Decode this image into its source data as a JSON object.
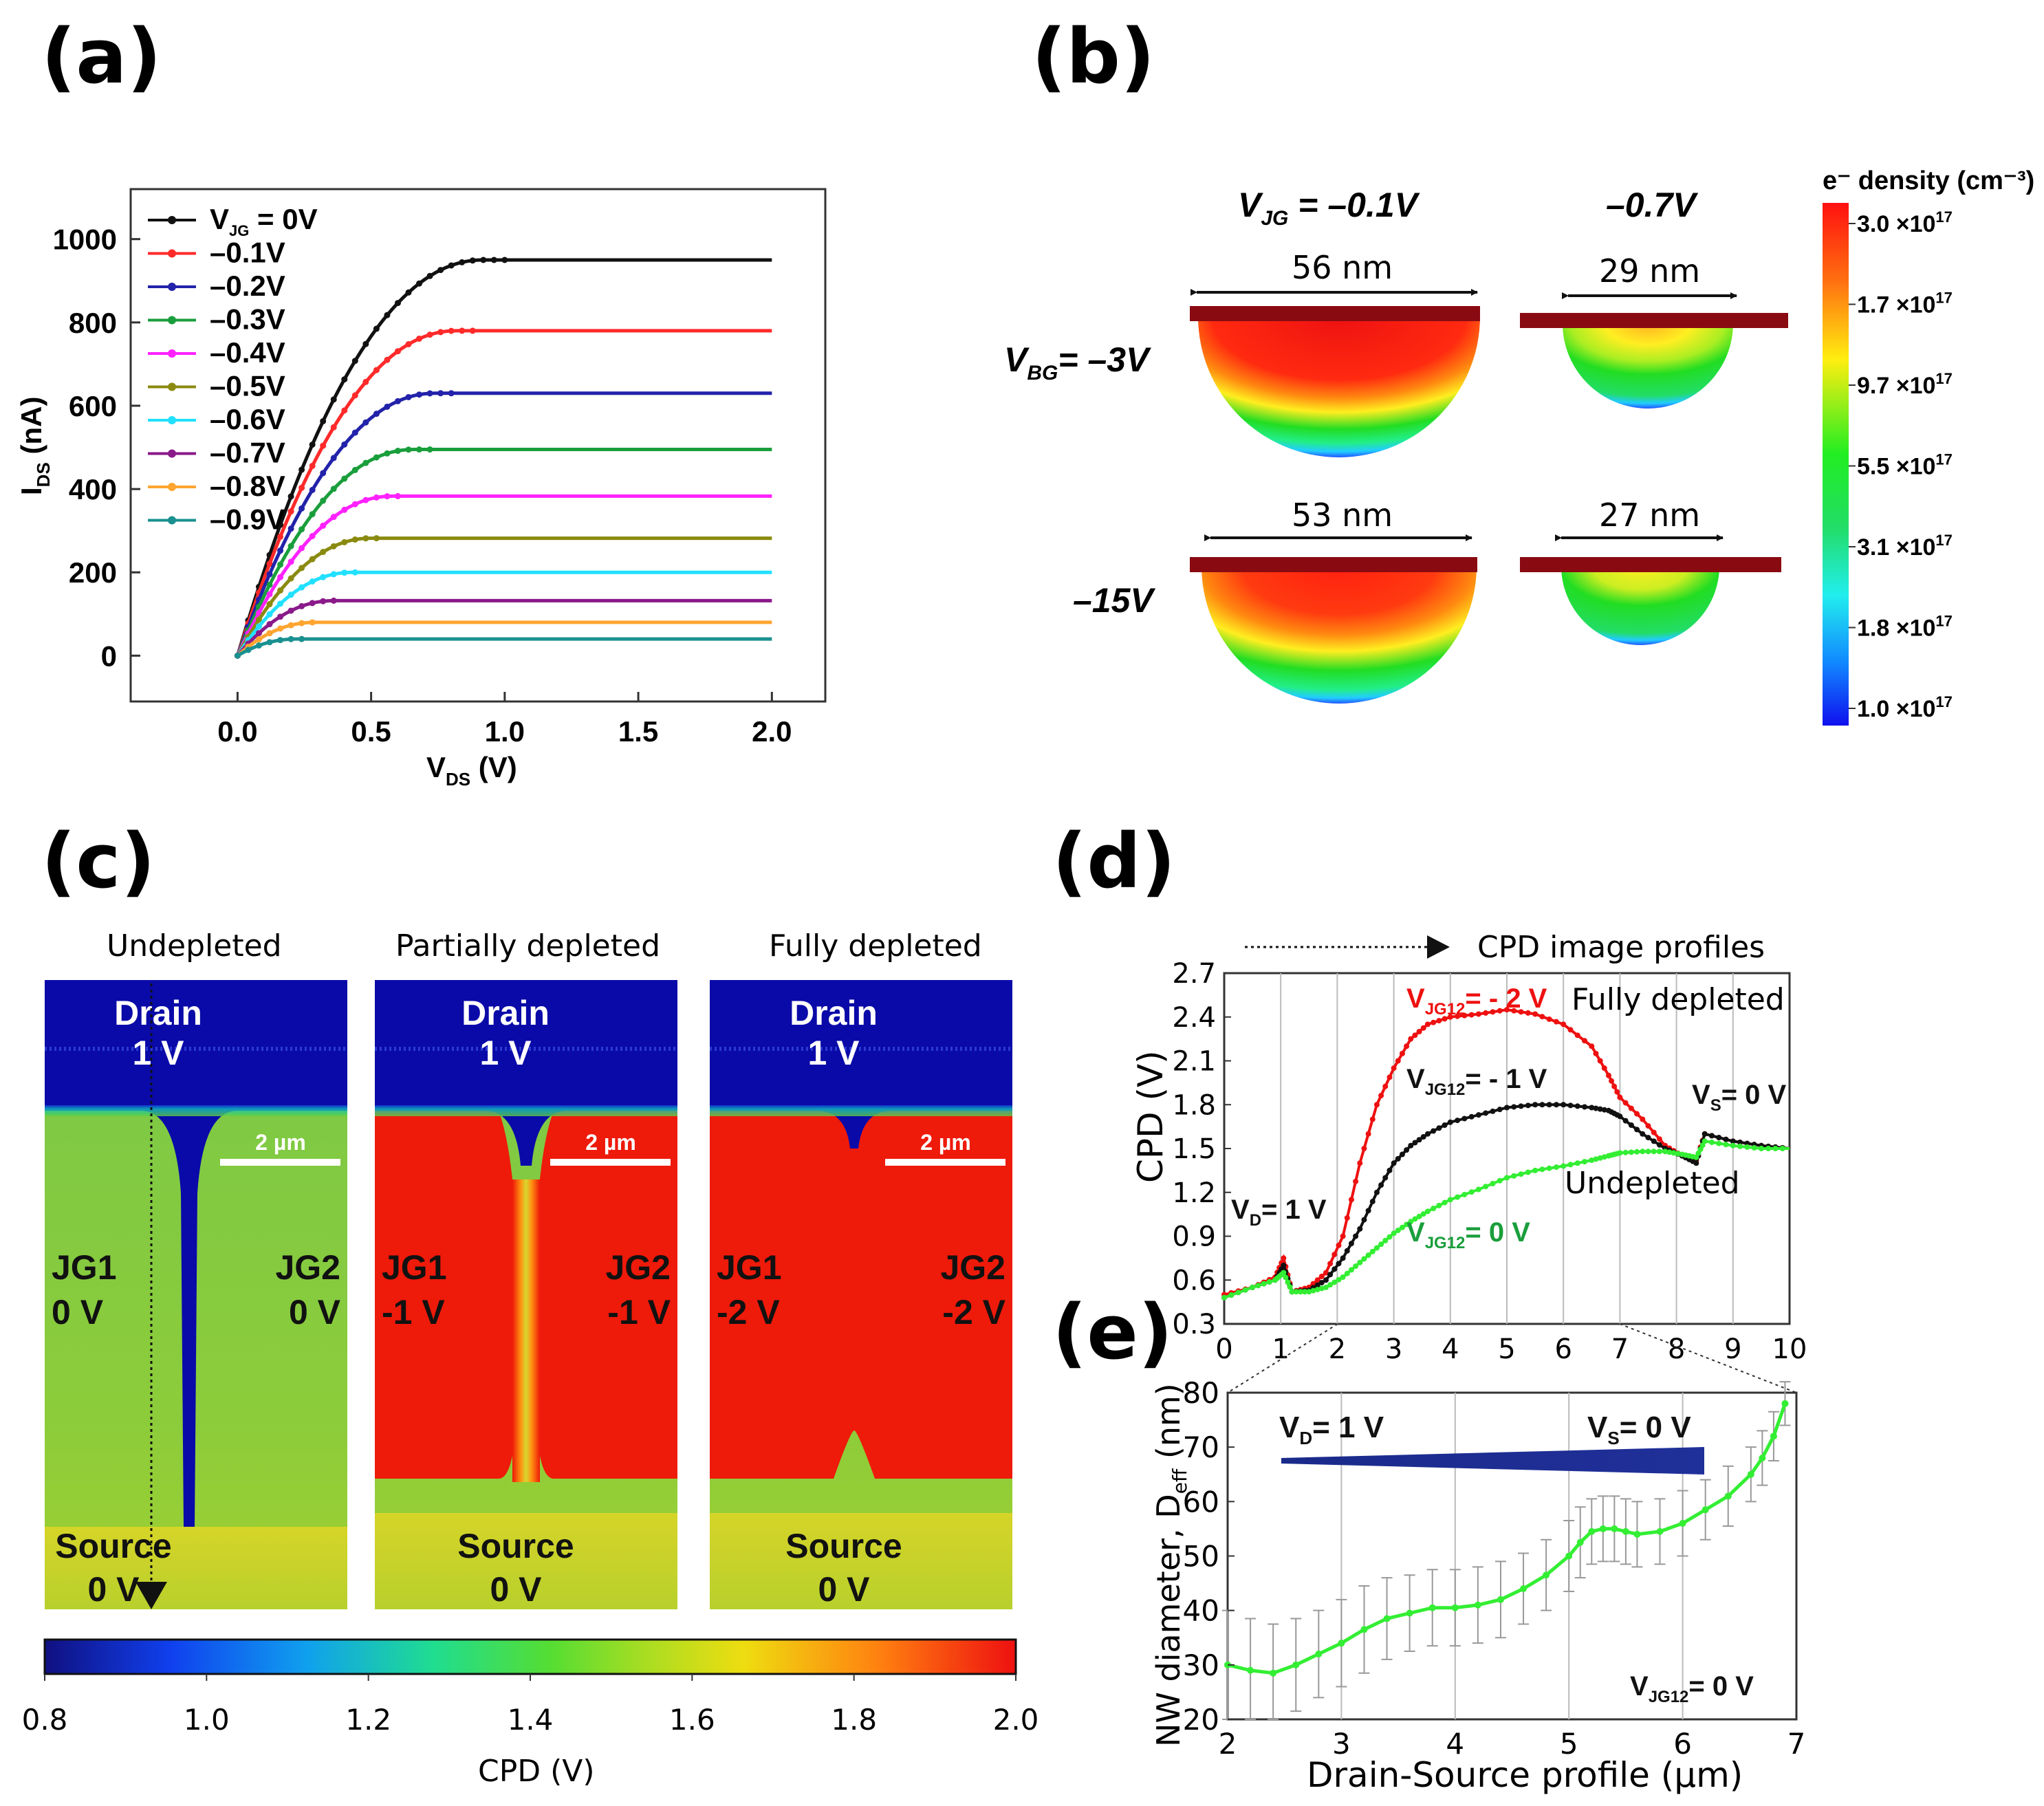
{
  "panels": {
    "a": "(a)",
    "b": "(b)",
    "c": "(c)",
    "d": "(d)",
    "e": "(e)"
  },
  "colors": {
    "black": "#111111",
    "red": "#ff2a2a",
    "blue": "#2222aa",
    "green": "#1a9e3c",
    "magenta": "#ff22ff",
    "olive": "#8a8a10",
    "cyan": "#22e0ff",
    "purple": "#8a1a8a",
    "orange": "#ffa530",
    "teal": "#1a9090",
    "navy": "#000a9a",
    "cpdred": "#ee1010",
    "cpdgreen": "#33ee33"
  },
  "chart_data": [
    {
      "id": "a",
      "type": "line",
      "xlabel": "V",
      "xlabel_sub": "DS",
      "xlabel_unit": " (V)",
      "ylabel": "I",
      "ylabel_sub": "DS",
      "ylabel_unit": " (nA)",
      "xlim": [
        -0.4,
        2.2
      ],
      "ylim": [
        -110,
        1120
      ],
      "xticks": [
        "0.0",
        "0.5",
        "1.0",
        "1.5",
        "2.0"
      ],
      "yticks": [
        "0",
        "200",
        "400",
        "600",
        "800",
        "1000"
      ],
      "legend_first": {
        "prefix": "V",
        "sub": "JG",
        "suffix": " = 0V"
      },
      "series": [
        {
          "name": "V_JG = 0V",
          "label": "",
          "color": "black",
          "plateau": 950,
          "vsat": 0.92
        },
        {
          "name": "-0.1V",
          "label": "–0.1V",
          "color": "red",
          "plateau": 780,
          "vsat": 0.82
        },
        {
          "name": "-0.2V",
          "label": "–0.2V",
          "color": "blue",
          "plateau": 630,
          "vsat": 0.74
        },
        {
          "name": "-0.3V",
          "label": "–0.3V",
          "color": "green",
          "plateau": 495,
          "vsat": 0.66
        },
        {
          "name": "-0.4V",
          "label": "–0.4V",
          "color": "magenta",
          "plateau": 383,
          "vsat": 0.58
        },
        {
          "name": "-0.5V",
          "label": "–0.5V",
          "color": "olive",
          "plateau": 282,
          "vsat": 0.5
        },
        {
          "name": "-0.6V",
          "label": "–0.6V",
          "color": "cyan",
          "plateau": 200,
          "vsat": 0.43
        },
        {
          "name": "-0.7V",
          "label": "–0.7V",
          "color": "purple",
          "plateau": 132,
          "vsat": 0.36
        },
        {
          "name": "-0.8V",
          "label": "–0.8V",
          "color": "orange",
          "plateau": 80,
          "vsat": 0.29
        },
        {
          "name": "-0.9V",
          "label": "–0.9V",
          "color": "teal",
          "plateau": 40,
          "vsat": 0.22
        }
      ]
    },
    {
      "id": "b",
      "type": "heatmap",
      "title_vjg": "–0.1V",
      "title_vjg2": "–0.7V",
      "row1": "= –3V",
      "row2": "–15V",
      "dims": [
        "56 nm",
        "29 nm",
        "53 nm",
        "27 nm"
      ],
      "cb_title": "e⁻ density (cm⁻³)",
      "cb_ticks": [
        {
          "m": "3.0",
          "e": "17"
        },
        {
          "m": "1.7",
          "e": "17"
        },
        {
          "m": "9.7",
          "e": "17"
        },
        {
          "m": "5.5",
          "e": "17"
        },
        {
          "m": "3.1",
          "e": "17"
        },
        {
          "m": "1.8",
          "e": "17"
        },
        {
          "m": "1.0",
          "e": "17"
        }
      ]
    },
    {
      "id": "c",
      "type": "heatmap",
      "titles": [
        "Undepleted",
        "Partially depleted",
        "Fully depleted"
      ],
      "drain": "Drain",
      "drainv": "1 V",
      "source": "Source",
      "sourcev": "0 V",
      "scale": "2 µm",
      "jg1": "JG1",
      "jg2": "JG2",
      "jgv": [
        "0 V",
        "-1 V",
        "-2 V"
      ],
      "cb_ticks": [
        "0.8",
        "1.0",
        "1.2",
        "1.4",
        "1.6",
        "1.8",
        "2.0"
      ],
      "cb_label": "CPD (V)"
    },
    {
      "id": "d",
      "type": "line",
      "arrow_label": "CPD image profiles",
      "ylabel": "CPD  (V)",
      "xlim": [
        0,
        10
      ],
      "ylim": [
        0.3,
        2.7
      ],
      "xticks": [
        "0",
        "1",
        "2",
        "3",
        "4",
        "5",
        "6",
        "7",
        "8",
        "9",
        "10"
      ],
      "yticks": [
        "0.3",
        "0.6",
        "0.9",
        "1.2",
        "1.5",
        "1.8",
        "2.1",
        "2.4",
        "2.7"
      ],
      "ann": {
        "fully": "Fully depleted",
        "undepleted": "Undepleted",
        "vd": "= 1 V",
        "vs": "= 0 V",
        "m2": "= - 2 V",
        "m1": "= - 1 V",
        "z": "= 0 V"
      },
      "series": [
        {
          "name": "V_JG12 = -2 V",
          "color": "cpdred",
          "x": [
            0,
            0.5,
            0.9,
            1.05,
            1.2,
            1.5,
            1.8,
            2.1,
            2.4,
            2.7,
            3.0,
            3.3,
            3.6,
            4.0,
            4.5,
            5.0,
            5.5,
            6.0,
            6.5,
            6.8,
            7.0,
            7.4,
            7.8,
            8.1,
            8.35,
            8.5,
            9.0,
            9.5,
            10
          ],
          "y": [
            0.5,
            0.55,
            0.62,
            0.75,
            0.52,
            0.55,
            0.65,
            0.9,
            1.4,
            1.8,
            2.05,
            2.25,
            2.35,
            2.4,
            2.42,
            2.45,
            2.42,
            2.35,
            2.2,
            2.0,
            1.85,
            1.7,
            1.52,
            1.45,
            1.42,
            1.6,
            1.55,
            1.52,
            1.5
          ]
        },
        {
          "name": "V_JG12 = -1 V",
          "color": "black",
          "x": [
            0,
            0.5,
            0.9,
            1.05,
            1.2,
            1.5,
            1.8,
            2.1,
            2.4,
            2.7,
            3.0,
            3.3,
            3.6,
            4.0,
            4.5,
            5.0,
            5.5,
            6.0,
            6.5,
            6.8,
            7.0,
            7.4,
            7.8,
            8.1,
            8.35,
            8.5,
            9.0,
            9.5,
            10
          ],
          "y": [
            0.48,
            0.55,
            0.6,
            0.7,
            0.52,
            0.53,
            0.6,
            0.75,
            0.95,
            1.2,
            1.4,
            1.52,
            1.6,
            1.68,
            1.73,
            1.78,
            1.8,
            1.8,
            1.78,
            1.76,
            1.72,
            1.6,
            1.5,
            1.45,
            1.4,
            1.6,
            1.55,
            1.52,
            1.5
          ]
        },
        {
          "name": "V_JG12 = 0 V",
          "color": "cpdgreen",
          "x": [
            0,
            0.5,
            0.9,
            1.05,
            1.2,
            1.5,
            1.8,
            2.1,
            2.4,
            2.7,
            3.0,
            3.3,
            3.6,
            4.0,
            4.5,
            5.0,
            5.5,
            6.0,
            6.5,
            6.8,
            7.0,
            7.4,
            7.8,
            8.1,
            8.35,
            8.5,
            9.0,
            9.5,
            10
          ],
          "y": [
            0.48,
            0.55,
            0.6,
            0.65,
            0.52,
            0.52,
            0.55,
            0.62,
            0.72,
            0.82,
            0.92,
            1.0,
            1.07,
            1.15,
            1.22,
            1.3,
            1.35,
            1.38,
            1.42,
            1.45,
            1.47,
            1.48,
            1.48,
            1.46,
            1.44,
            1.55,
            1.52,
            1.5,
            1.5
          ]
        }
      ]
    },
    {
      "id": "e",
      "type": "line",
      "xlabel": "Drain-Source profile (µm)",
      "ylabel": "NW diameter, D",
      "ylabel_sub": "eff",
      "ylabel_unit": " (nm)",
      "xlim": [
        2,
        7
      ],
      "ylim": [
        20,
        80
      ],
      "xticks": [
        "2",
        "3",
        "4",
        "5",
        "6",
        "7"
      ],
      "yticks": [
        "20",
        "30",
        "40",
        "50",
        "60",
        "70",
        "80"
      ],
      "ann": {
        "vd": "= 1 V",
        "vs": "= 0 V",
        "vjg": "= 0 V"
      },
      "series": [
        {
          "name": "D_eff",
          "color": "cpdgreen",
          "x": [
            2.0,
            2.2,
            2.4,
            2.6,
            2.8,
            3.0,
            3.2,
            3.4,
            3.6,
            3.8,
            4.0,
            4.2,
            4.4,
            4.6,
            4.8,
            5.0,
            5.1,
            5.2,
            5.3,
            5.4,
            5.5,
            5.6,
            5.8,
            6.0,
            6.2,
            6.4,
            6.6,
            6.7,
            6.8,
            6.9
          ],
          "y": [
            30,
            29,
            28.5,
            30,
            32,
            34,
            36.5,
            38.5,
            39.5,
            40.5,
            40.5,
            41,
            42,
            44,
            46.5,
            50,
            52.5,
            54.5,
            55,
            55,
            54.5,
            54,
            54.5,
            56,
            58.5,
            61,
            65,
            68,
            72,
            78
          ],
          "err": [
            10,
            9.5,
            9,
            8.5,
            8,
            8,
            8,
            7.5,
            7,
            7,
            7,
            7,
            7,
            6.5,
            6.5,
            6.5,
            6.5,
            6,
            6,
            6,
            6,
            6,
            6,
            6,
            5.5,
            5.5,
            5,
            5,
            4.5,
            4
          ]
        }
      ]
    }
  ]
}
